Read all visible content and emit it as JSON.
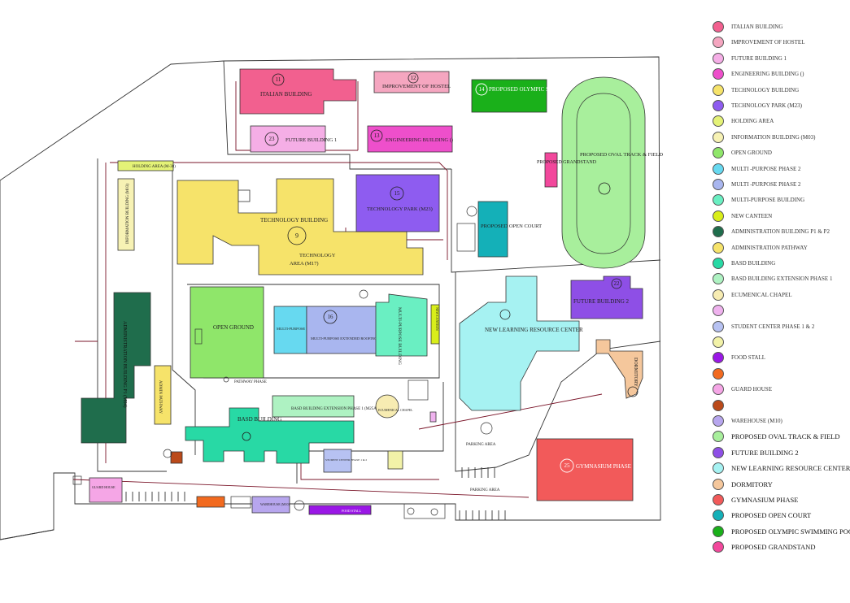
{
  "buildings": {
    "italian": {
      "number": "11",
      "label": "ITALIAN BUILDING"
    },
    "hostel": {
      "number": "12",
      "label": "IMPROVEMENT OF HOSTEL"
    },
    "pool": {
      "number": "14",
      "label": "PROPOSED OLYMPIC SWIMMING POOL"
    },
    "future1": {
      "number": "23",
      "label": "FUTURE BUILDING 1"
    },
    "engineering": {
      "number": "13",
      "label": "ENGINEERING BUILDING ()"
    },
    "holding": {
      "label": "HOLDING AREA (M-38)"
    },
    "info": {
      "label": "INFORMATION BUILDING (M03)"
    },
    "technology": {
      "number": "9",
      "label": "TECHNOLOGY BUILDING",
      "label2": "TECHNOLOGY",
      "label3": "AREA (M17)"
    },
    "techpark": {
      "number": "15",
      "label": "TECHNOLOGY PARK (M23)"
    },
    "opencourt": {
      "label": "PROPOSED OPEN COURT"
    },
    "grandstand": {
      "label": "PROPOSED GRANDSTAND"
    },
    "oval": {
      "label": "PROPOSED OVAL TRACK & FIELD"
    },
    "admin": {
      "label": "ADMINISTRATION BUILDING P1 (M04)"
    },
    "adminpath": {
      "label": "ADMIN PATHWAY"
    },
    "openground": {
      "label": "OPEN GROUND"
    },
    "mp_ext": {
      "label": "MULTI-PURPOSE EXTENDED ROOFING PHASE 2"
    },
    "mp1": {
      "number": "16",
      "label": "MULTI-PURPOSE EXTENDED ROOFING PHASE 1"
    },
    "multibldg": {
      "label": "MULTI-PURPOSE BUILDING"
    },
    "canteen": {
      "label": "NEW CANTEEN"
    },
    "nlrc": {
      "label": "NEW LEARNING RESOURCE CENTER"
    },
    "future2": {
      "number": "22",
      "label": "FUTURE BUILDING 2"
    },
    "dormitory": {
      "label": "DORMITORY"
    },
    "pathway": {
      "label": "PATHWAY PHASE"
    },
    "basd": {
      "label": "BASD BUILDING"
    },
    "basd_ext": {
      "label": "BASD BUILDING EXTENSION PHASE 1 (M25A)"
    },
    "chapel": {
      "label": "ECUMENICAL CHAPEL"
    },
    "student": {
      "label": "STUDENT CENTER PHASE 1 & 2"
    },
    "parking1": {
      "label": "PARKING AREA"
    },
    "parking2": {
      "label": "PARKING AREA"
    },
    "gym": {
      "number": "25",
      "label": "GYMNASIUM PHASE"
    },
    "guard": {
      "label": "GUARD HOUSE"
    },
    "warehouse": {
      "label": "WAREHOUSE (M10)"
    },
    "foodstall": {
      "label": "FOOD STALL"
    }
  },
  "legend": [
    {
      "label": "ITALIAN BUILDING",
      "color": "#f2608f",
      "big": false
    },
    {
      "label": "IMPROVEMENT OF HOSTEL",
      "color": "#f5a6c0",
      "big": false
    },
    {
      "label": "FUTURE BUILDING 1",
      "color": "#f5aee6",
      "big": false
    },
    {
      "label": "ENGINEERING BUILDING ()",
      "color": "#ee4fcb",
      "big": false
    },
    {
      "label": "TECHNOLOGY BUILDING",
      "color": "#f6e36a",
      "big": false
    },
    {
      "label": "TECHNOLOGY PARK (M23)",
      "color": "#8e5cf0",
      "big": false
    },
    {
      "label": "HOLDING AREA",
      "color": "#e4f277",
      "big": false
    },
    {
      "label": "INFORMATION BUILDING (M03)",
      "color": "#f7f2b4",
      "big": false
    },
    {
      "label": "OPEN GROUND",
      "color": "#8fe66a",
      "big": false
    },
    {
      "label": "MULTI -PURPOSE PHASE 2",
      "color": "#67d9f0",
      "big": false
    },
    {
      "label": "MULTI -PURPOSE PHASE 2",
      "color": "#a9b6ef",
      "big": false
    },
    {
      "label": "MULTI-PURPOSE BUILDING",
      "color": "#6aefc2",
      "big": false
    },
    {
      "label": "NEW CANTEEN",
      "color": "#d9ee1a",
      "big": false
    },
    {
      "label": "ADMINISTRATION BUILDING P1 & P2",
      "color": "#1f6d4c",
      "big": false
    },
    {
      "label": "ADMINISTRATION PATHWAY",
      "color": "#f6e36a",
      "big": false
    },
    {
      "label": "BASD BUILDING",
      "color": "#28d9a5",
      "big": false
    },
    {
      "label": "BASD BUILDING EXTENSION PHASE 1",
      "color": "#aef2c2",
      "big": false
    },
    {
      "label": "ECUMENICAL CHAPEL",
      "color": "#f7ecb2",
      "big": false
    },
    {
      "label": "",
      "color": "#efb2ee",
      "big": false
    },
    {
      "label": "STUDENT CENTER PHASE 1 & 2",
      "color": "#b7c2f2",
      "big": false
    },
    {
      "label": "",
      "color": "#f2f2a8",
      "big": false
    },
    {
      "label": "FOOD STALL",
      "color": "#9a17e6",
      "big": false
    },
    {
      "label": "",
      "color": "#f26a1f",
      "big": false
    },
    {
      "label": "GUARD HOUSE",
      "color": "#f5a6e6",
      "big": false
    },
    {
      "label": "",
      "color": "#bb4a1a",
      "big": false
    },
    {
      "label": "WAREHOUSE (M10)",
      "color": "#b7a6ee",
      "big": false
    },
    {
      "label": "PROPOSED OVAL TRACK & FIELD",
      "color": "#a8ef9c",
      "big": true
    },
    {
      "label": "FUTURE BUILDING 2",
      "color": "#8e4fe6",
      "big": true
    },
    {
      "label": "NEW LEARNING RESOURCE CENTER",
      "color": "#a6f2f2",
      "big": true
    },
    {
      "label": "DORMITORY",
      "color": "#f5c79c",
      "big": true
    },
    {
      "label": "GYMNASIUM PHASE",
      "color": "#f25a5a",
      "big": true
    },
    {
      "label": "PROPOSED OPEN COURT",
      "color": "#14b0b8",
      "big": true
    },
    {
      "label": "PROPOSED OLYMPIC SWIMMING POOL",
      "color": "#1ab01a",
      "big": true
    },
    {
      "label": "PROPOSED GRANDSTAND",
      "color": "#f2489c",
      "big": true
    }
  ]
}
